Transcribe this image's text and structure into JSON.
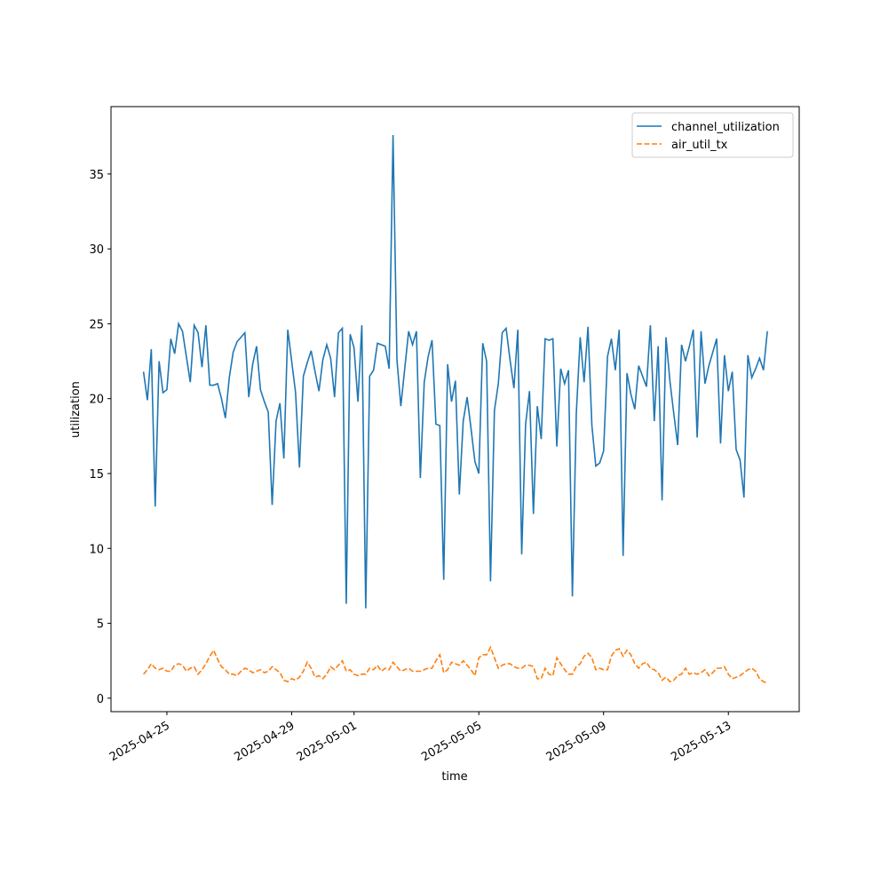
{
  "chart_data": {
    "type": "line",
    "xlabel": "time",
    "ylabel": "utilization",
    "legend": "upper right",
    "x": [
      "2025-04-24T06:00",
      "2025-04-24T09:00",
      "2025-04-24T12:00",
      "2025-04-24T15:00",
      "2025-04-24T18:00",
      "2025-04-24T21:00",
      "2025-04-25T00:00",
      "2025-04-25T03:00",
      "2025-04-25T06:00",
      "2025-04-25T09:00",
      "2025-04-25T12:00",
      "2025-04-25T15:00",
      "2025-04-25T18:00",
      "2025-04-25T21:00",
      "2025-04-26T00:00",
      "2025-04-26T03:00",
      "2025-04-26T06:00",
      "2025-04-26T09:00",
      "2025-04-26T12:00",
      "2025-04-26T15:00",
      "2025-04-26T18:00",
      "2025-04-26T21:00",
      "2025-04-27T00:00",
      "2025-04-27T03:00",
      "2025-04-27T06:00",
      "2025-04-27T09:00",
      "2025-04-27T12:00",
      "2025-04-27T15:00",
      "2025-04-27T18:00",
      "2025-04-27T21:00",
      "2025-04-28T00:00",
      "2025-04-28T03:00",
      "2025-04-28T06:00",
      "2025-04-28T09:00",
      "2025-04-28T12:00",
      "2025-04-28T15:00",
      "2025-04-28T18:00",
      "2025-04-28T21:00",
      "2025-04-29T00:00",
      "2025-04-29T03:00",
      "2025-04-29T06:00",
      "2025-04-29T09:00",
      "2025-04-29T12:00",
      "2025-04-29T15:00",
      "2025-04-29T18:00",
      "2025-04-29T21:00",
      "2025-04-30T00:00",
      "2025-04-30T03:00",
      "2025-04-30T06:00",
      "2025-04-30T09:00",
      "2025-04-30T12:00",
      "2025-04-30T15:00",
      "2025-04-30T18:00",
      "2025-04-30T21:00",
      "2025-05-01T00:00",
      "2025-05-01T03:00",
      "2025-05-01T06:00",
      "2025-05-01T09:00",
      "2025-05-01T12:00",
      "2025-05-01T15:00",
      "2025-05-01T18:00",
      "2025-05-01T21:00",
      "2025-05-02T00:00",
      "2025-05-02T03:00",
      "2025-05-02T06:00",
      "2025-05-02T09:00",
      "2025-05-02T12:00",
      "2025-05-02T15:00",
      "2025-05-02T18:00",
      "2025-05-02T21:00",
      "2025-05-03T00:00",
      "2025-05-03T03:00",
      "2025-05-03T06:00",
      "2025-05-03T09:00",
      "2025-05-03T12:00",
      "2025-05-03T15:00",
      "2025-05-03T18:00",
      "2025-05-03T21:00",
      "2025-05-04T00:00",
      "2025-05-04T03:00",
      "2025-05-04T06:00",
      "2025-05-04T09:00",
      "2025-05-04T12:00",
      "2025-05-04T15:00",
      "2025-05-04T18:00",
      "2025-05-04T21:00",
      "2025-05-05T00:00",
      "2025-05-05T03:00",
      "2025-05-05T06:00",
      "2025-05-05T09:00",
      "2025-05-05T12:00",
      "2025-05-05T15:00",
      "2025-05-05T18:00",
      "2025-05-05T21:00",
      "2025-05-06T00:00",
      "2025-05-06T03:00",
      "2025-05-06T06:00",
      "2025-05-06T09:00",
      "2025-05-06T12:00",
      "2025-05-06T15:00",
      "2025-05-06T18:00",
      "2025-05-06T21:00",
      "2025-05-07T00:00",
      "2025-05-07T03:00",
      "2025-05-07T06:00",
      "2025-05-07T09:00",
      "2025-05-07T12:00",
      "2025-05-07T15:00",
      "2025-05-07T18:00",
      "2025-05-07T21:00",
      "2025-05-08T00:00",
      "2025-05-08T03:00",
      "2025-05-08T06:00",
      "2025-05-08T09:00",
      "2025-05-08T12:00",
      "2025-05-08T15:00",
      "2025-05-08T18:00",
      "2025-05-08T21:00",
      "2025-05-09T00:00",
      "2025-05-09T03:00",
      "2025-05-09T06:00",
      "2025-05-09T09:00",
      "2025-05-09T12:00",
      "2025-05-09T15:00",
      "2025-05-09T18:00",
      "2025-05-09T21:00",
      "2025-05-10T00:00",
      "2025-05-10T03:00",
      "2025-05-10T06:00",
      "2025-05-10T09:00",
      "2025-05-10T12:00",
      "2025-05-10T15:00",
      "2025-05-10T18:00",
      "2025-05-10T21:00",
      "2025-05-11T00:00",
      "2025-05-11T03:00",
      "2025-05-11T06:00",
      "2025-05-11T09:00",
      "2025-05-11T12:00",
      "2025-05-11T15:00",
      "2025-05-11T18:00",
      "2025-05-11T21:00",
      "2025-05-12T00:00",
      "2025-05-12T03:00",
      "2025-05-12T06:00",
      "2025-05-12T09:00",
      "2025-05-12T12:00",
      "2025-05-12T15:00",
      "2025-05-12T18:00",
      "2025-05-12T21:00",
      "2025-05-13T00:00",
      "2025-05-13T03:00",
      "2025-05-13T06:00",
      "2025-05-13T09:00",
      "2025-05-13T12:00",
      "2025-05-13T15:00",
      "2025-05-13T18:00",
      "2025-05-13T21:00",
      "2025-05-14T00:00",
      "2025-05-14T03:00",
      "2025-05-14T06:00"
    ],
    "series": [
      {
        "name": "channel_utilization",
        "color": "#1f77b4",
        "linestyle": "solid",
        "values": [
          21.8,
          19.9,
          23.3,
          12.8,
          22.5,
          20.4,
          20.6,
          24.0,
          23.0,
          25.0,
          24.5,
          22.8,
          21.1,
          24.9,
          24.4,
          22.1,
          24.9,
          20.9,
          20.9,
          21.0,
          20.0,
          18.7,
          21.4,
          23.1,
          23.8,
          24.1,
          24.4,
          20.1,
          22.3,
          23.5,
          20.6,
          19.8,
          19.1,
          12.9,
          18.5,
          19.7,
          16.0,
          24.6,
          22.5,
          20.4,
          15.4,
          21.5,
          22.4,
          23.2,
          21.8,
          20.5,
          22.6,
          23.6,
          22.7,
          20.1,
          24.4,
          24.7,
          6.3,
          24.3,
          23.4,
          19.8,
          24.9,
          6.0,
          21.5,
          21.9,
          23.7,
          23.6,
          23.5,
          22.0,
          37.6,
          22.6,
          19.5,
          22.0,
          24.5,
          23.6,
          24.5,
          14.7,
          21.1,
          22.8,
          23.9,
          18.3,
          18.2,
          7.9,
          22.3,
          19.8,
          21.2,
          13.6,
          18.5,
          20.1,
          18.0,
          15.8,
          15.0,
          23.7,
          22.5,
          7.8,
          19.2,
          21.0,
          24.4,
          24.7,
          22.6,
          20.7,
          24.6,
          9.6,
          18.3,
          20.5,
          12.3,
          19.5,
          17.3,
          24.0,
          23.9,
          24.0,
          16.8,
          22.0,
          21.0,
          21.9,
          6.8,
          19.0,
          24.1,
          21.1,
          24.8,
          18.2,
          15.5,
          15.7,
          16.5,
          22.8,
          24.0,
          21.9,
          24.6,
          9.5,
          21.7,
          20.3,
          19.3,
          22.2,
          21.5,
          20.8,
          24.9,
          18.5,
          23.5,
          13.2,
          24.1,
          21.2,
          19.0,
          16.9,
          23.6,
          22.5,
          23.5,
          24.6,
          17.4,
          24.5,
          21.0,
          22.2,
          23.1,
          24.0,
          17.0,
          22.9,
          20.5,
          21.8,
          16.6,
          15.9,
          13.4,
          22.9,
          21.4,
          22.0,
          22.7,
          21.9,
          24.5
        ]
      },
      {
        "name": "air_util_tx",
        "color": "#ff7f0e",
        "linestyle": "dashed",
        "values": [
          1.6,
          1.9,
          2.3,
          2.0,
          1.9,
          2.0,
          1.8,
          1.8,
          2.2,
          2.3,
          2.2,
          1.8,
          2.0,
          2.1,
          1.6,
          1.9,
          2.3,
          2.8,
          3.2,
          2.6,
          2.1,
          1.9,
          1.6,
          1.6,
          1.5,
          1.8,
          2.0,
          1.9,
          1.7,
          1.8,
          1.9,
          1.7,
          1.8,
          2.1,
          1.9,
          1.7,
          1.2,
          1.1,
          1.3,
          1.2,
          1.4,
          1.8,
          2.4,
          2.0,
          1.4,
          1.5,
          1.3,
          1.6,
          2.1,
          1.9,
          2.2,
          2.5,
          1.8,
          1.9,
          1.6,
          1.5,
          1.6,
          1.6,
          2.0,
          1.9,
          2.2,
          1.8,
          2.0,
          1.9,
          2.4,
          2.1,
          1.8,
          1.9,
          2.0,
          1.8,
          1.8,
          1.8,
          1.9,
          2.0,
          2.0,
          2.5,
          2.9,
          1.7,
          1.9,
          2.4,
          2.3,
          2.2,
          2.5,
          2.2,
          1.9,
          1.5,
          2.7,
          2.9,
          2.9,
          3.4,
          2.7,
          2.0,
          2.2,
          2.3,
          2.3,
          2.1,
          2.0,
          2.0,
          2.2,
          2.2,
          2.1,
          1.3,
          1.3,
          2.0,
          1.6,
          1.5,
          2.7,
          2.3,
          1.9,
          1.6,
          1.6,
          2.1,
          2.3,
          2.8,
          3.0,
          2.7,
          1.9,
          2.0,
          1.9,
          1.9,
          2.8,
          3.2,
          3.3,
          2.8,
          3.2,
          2.9,
          2.3,
          2.0,
          2.3,
          2.4,
          2.0,
          1.9,
          1.7,
          1.2,
          1.4,
          1.1,
          1.2,
          1.5,
          1.6,
          2.0,
          1.6,
          1.7,
          1.6,
          1.7,
          1.9,
          1.5,
          1.7,
          2.0,
          2.0,
          2.1,
          1.6,
          1.3,
          1.4,
          1.5,
          1.7,
          1.9,
          2.0,
          1.8,
          1.3,
          1.1,
          1.0
        ]
      }
    ],
    "xlim": [
      "2025-04-23T05:00",
      "2025-05-15T06:30"
    ],
    "xticks": [
      "2025-04-25",
      "2025-04-29",
      "2025-05-01",
      "2025-05-05",
      "2025-05-09",
      "2025-05-13"
    ],
    "ylim": [
      -0.9,
      39.5
    ],
    "yticks": [
      0,
      5,
      10,
      15,
      20,
      25,
      30,
      35
    ]
  }
}
